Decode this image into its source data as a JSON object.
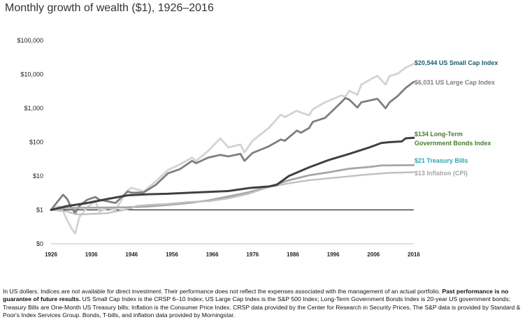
{
  "title": "Monthly growth of wealth ($1), 1926–2016",
  "footnote": {
    "part1": "In US dollars. Indices are not available for direct investment. Their performance does not reflect the expenses associated with the management of an actual portfolio. ",
    "bold": "Past performance is no guarantee of future results.",
    "part2": " US Small Cap Index is the CRSP 6–10 Index; US Large Cap Index is the S&P 500 Index; Long-Term Government Bonds Index is 20-year US government bonds; Treasury Bills are One-Month US Treasury bills; Inflation is the Consumer Price Index. CRSP data provided by the Center for Research in Security Prices, The S&P data is provided by Standard & Poor's Index Services Group. Bonds, T-bills, and inflation data provided by Morningstar."
  },
  "chart_data": {
    "type": "line",
    "title": "Monthly growth of wealth ($1), 1926–2016",
    "xlabel": "",
    "ylabel": "",
    "y_scale": "log",
    "xlim": [
      1926,
      2016
    ],
    "ylim": [
      0.1,
      100000
    ],
    "x_ticks": [
      1926,
      1936,
      1946,
      1956,
      1966,
      1976,
      1986,
      1996,
      2006,
      2016
    ],
    "y_ticks": [
      {
        "value": 0.1,
        "label": "$0"
      },
      {
        "value": 1,
        "label": "$1"
      },
      {
        "value": 10,
        "label": "$10"
      },
      {
        "value": 100,
        "label": "$100"
      },
      {
        "value": 1000,
        "label": "$1,000"
      },
      {
        "value": 10000,
        "label": "$10,000"
      },
      {
        "value": 100000,
        "label": "$100,000"
      }
    ],
    "reference_line": {
      "y": 1
    },
    "grid": false,
    "series": [
      {
        "name": "US Small Cap Index",
        "end_label": "$20,544 US Small Cap Index",
        "color": "#d3d3d3",
        "label_color": "#1a5e66",
        "x": [
          1926,
          1928,
          1929,
          1930,
          1931,
          1932,
          1933,
          1935,
          1937,
          1938,
          1940,
          1942,
          1945,
          1946,
          1949,
          1952,
          1955,
          1958,
          1961,
          1962,
          1965,
          1968,
          1970,
          1973,
          1974,
          1976,
          1980,
          1983,
          1984,
          1987,
          1988,
          1990,
          1991,
          1994,
          1998,
          1999,
          2000,
          2002,
          2003,
          2006,
          2007,
          2009,
          2010,
          2012,
          2014,
          2016
        ],
        "y": [
          1,
          1.3,
          0.9,
          0.5,
          0.3,
          0.2,
          0.6,
          1.2,
          1.8,
          0.9,
          1.1,
          1.0,
          3.8,
          4.5,
          3.5,
          7.0,
          15,
          22,
          35,
          28,
          55,
          130,
          70,
          85,
          50,
          110,
          260,
          650,
          550,
          850,
          750,
          620,
          950,
          1500,
          2400,
          2200,
          3300,
          2500,
          5000,
          8000,
          9000,
          5000,
          9000,
          10500,
          16000,
          20544
        ]
      },
      {
        "name": "US Large Cap Index",
        "end_label": "$6,031 US Large Cap Index",
        "color": "#7f7f7f",
        "label_color": "#7f7f7f",
        "x": [
          1926,
          1928,
          1929,
          1930,
          1931,
          1932,
          1933,
          1935,
          1937,
          1938,
          1940,
          1942,
          1945,
          1946,
          1949,
          1952,
          1955,
          1958,
          1961,
          1962,
          1965,
          1968,
          1970,
          1973,
          1974,
          1976,
          1980,
          1983,
          1984,
          1987,
          1988,
          1990,
          1991,
          1994,
          1998,
          1999,
          2000,
          2002,
          2003,
          2006,
          2007,
          2009,
          2010,
          2012,
          2014,
          2016
        ],
        "y": [
          1,
          2.0,
          2.8,
          2.1,
          1.2,
          0.8,
          1.3,
          2.0,
          2.4,
          2.0,
          1.8,
          1.6,
          3.5,
          3.2,
          3.3,
          5.5,
          12,
          16,
          28,
          24,
          35,
          42,
          38,
          45,
          28,
          48,
          75,
          120,
          110,
          220,
          190,
          260,
          400,
          520,
          1500,
          2000,
          1800,
          1050,
          1500,
          1800,
          1900,
          1000,
          1500,
          2300,
          4000,
          6031
        ]
      },
      {
        "name": "Long-Term Government Bonds Index",
        "end_label": [
          "$134 Long-Term",
          "Government Bonds Index"
        ],
        "color": "#404040",
        "label_color": "#4a7a2b",
        "x": [
          1926,
          1930,
          1935,
          1940,
          1945,
          1950,
          1955,
          1960,
          1965,
          1970,
          1975,
          1980,
          1982,
          1985,
          1990,
          1995,
          2000,
          2005,
          2008,
          2010,
          2013,
          2014,
          2016
        ],
        "y": [
          1,
          1.3,
          1.6,
          2.1,
          2.7,
          2.9,
          3.0,
          3.2,
          3.4,
          3.6,
          4.4,
          4.9,
          5.5,
          10,
          18,
          30,
          45,
          70,
          95,
          100,
          105,
          130,
          134
        ]
      },
      {
        "name": "Treasury Bills",
        "end_label": "$21 Treasury Bills",
        "color": "#a6a6a6",
        "label_color": "#2ca6b0",
        "x": [
          1926,
          1930,
          1935,
          1940,
          1945,
          1950,
          1955,
          1960,
          1965,
          1970,
          1975,
          1980,
          1985,
          1990,
          1995,
          2000,
          2005,
          2008,
          2016
        ],
        "y": [
          1,
          1.13,
          1.16,
          1.17,
          1.19,
          1.26,
          1.4,
          1.6,
          1.9,
          2.5,
          3.3,
          4.8,
          7.5,
          10.5,
          13,
          16.5,
          18.5,
          20.5,
          21
        ]
      },
      {
        "name": "Inflation (CPI)",
        "end_label": "$13 Inflation (CPI)",
        "color": "#c0c0c0",
        "label_color": "#a6a6a6",
        "x": [
          1926,
          1928,
          1930,
          1932,
          1933,
          1940,
          1942,
          1946,
          1947,
          1950,
          1955,
          1960,
          1965,
          1970,
          1975,
          1980,
          1985,
          1990,
          1995,
          2000,
          2005,
          2010,
          2016
        ],
        "y": [
          1,
          0.95,
          0.9,
          0.75,
          0.73,
          0.8,
          0.9,
          1.1,
          1.3,
          1.4,
          1.5,
          1.7,
          1.8,
          2.2,
          3.0,
          4.7,
          6.1,
          7.5,
          8.6,
          9.8,
          11.2,
          12.4,
          13
        ]
      }
    ]
  }
}
